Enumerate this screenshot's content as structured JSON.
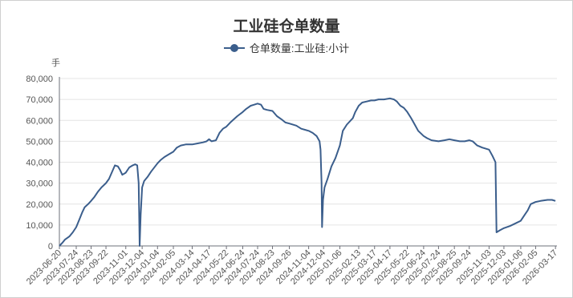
{
  "chart_data": {
    "type": "line",
    "title": "工业硅仓单数量",
    "ylabel": "手",
    "ylim": [
      0,
      80000
    ],
    "yticks": [
      0,
      10000,
      20000,
      30000,
      40000,
      50000,
      60000,
      70000,
      80000
    ],
    "ytick_labels": [
      "0",
      "10,000",
      "20,000",
      "30,000",
      "40,000",
      "50,000",
      "60,000",
      "70,000",
      "80,000"
    ],
    "xlim": [
      "2023-06-20",
      "2026-03-20"
    ],
    "xticks": [
      "2023-06-20",
      "2023-07-24",
      "2023-08-23",
      "2023-09-22",
      "2023-11-01",
      "2023-12-04",
      "2024-01-04",
      "2024-02-05",
      "2024-03-14",
      "2024-04-17",
      "2024-05-22",
      "2024-06-24",
      "2024-07-24",
      "2024-08-23",
      "2024-09-26",
      "2024-11-04",
      "2024-12-04",
      "2025-01-06",
      "2025-02-13",
      "2025-03-17",
      "2025-04-17",
      "2025-05-22",
      "2025-06-24",
      "2025-07-24",
      "2025-08-25",
      "2025-09-24",
      "2025-11-03",
      "2025-12-03",
      "2026-01-06",
      "2026-02-05",
      "2026-03-17"
    ],
    "grid": true,
    "legend_position": "top-center",
    "series": [
      {
        "name": "仓单数量:工业硅:小计",
        "color": "#3b5e8c",
        "points": [
          [
            "2023-06-20",
            0
          ],
          [
            "2023-06-26",
            1500
          ],
          [
            "2023-07-01",
            3000
          ],
          [
            "2023-07-10",
            4500
          ],
          [
            "2023-07-17",
            6500
          ],
          [
            "2023-07-24",
            9000
          ],
          [
            "2023-07-31",
            13000
          ],
          [
            "2023-08-05",
            16000
          ],
          [
            "2023-08-10",
            18500
          ],
          [
            "2023-08-17",
            20000
          ],
          [
            "2023-08-23",
            21500
          ],
          [
            "2023-08-30",
            23500
          ],
          [
            "2023-09-06",
            26000
          ],
          [
            "2023-09-13",
            28000
          ],
          [
            "2023-09-22",
            30000
          ],
          [
            "2023-09-28",
            32000
          ],
          [
            "2023-10-10",
            38500
          ],
          [
            "2023-10-16",
            38000
          ],
          [
            "2023-10-20",
            36500
          ],
          [
            "2023-10-25",
            34000
          ],
          [
            "2023-11-01",
            35000
          ],
          [
            "2023-11-08",
            37500
          ],
          [
            "2023-11-15",
            38500
          ],
          [
            "2023-11-20",
            39000
          ],
          [
            "2023-11-24",
            38500
          ],
          [
            "2023-11-27",
            30000
          ],
          [
            "2023-11-29",
            0
          ],
          [
            "2023-12-01",
            15000
          ],
          [
            "2023-12-04",
            28000
          ],
          [
            "2023-12-08",
            31000
          ],
          [
            "2023-12-15",
            33000
          ],
          [
            "2023-12-22",
            35500
          ],
          [
            "2024-01-04",
            39500
          ],
          [
            "2024-01-10",
            41000
          ],
          [
            "2024-01-18",
            42500
          ],
          [
            "2024-01-25",
            43500
          ],
          [
            "2024-02-05",
            45000
          ],
          [
            "2024-02-12",
            47000
          ],
          [
            "2024-02-20",
            48000
          ],
          [
            "2024-03-01",
            48500
          ],
          [
            "2024-03-14",
            48500
          ],
          [
            "2024-03-25",
            49000
          ],
          [
            "2024-04-05",
            49500
          ],
          [
            "2024-04-12",
            50000
          ],
          [
            "2024-04-17",
            51000
          ],
          [
            "2024-04-22",
            50000
          ],
          [
            "2024-05-01",
            50500
          ],
          [
            "2024-05-08",
            54000
          ],
          [
            "2024-05-15",
            56000
          ],
          [
            "2024-05-22",
            57000
          ],
          [
            "2024-05-30",
            59000
          ],
          [
            "2024-06-06",
            60500
          ],
          [
            "2024-06-13",
            62000
          ],
          [
            "2024-06-24",
            64000
          ],
          [
            "2024-07-01",
            65500
          ],
          [
            "2024-07-10",
            67000
          ],
          [
            "2024-07-17",
            67500
          ],
          [
            "2024-07-24",
            68000
          ],
          [
            "2024-07-31",
            67500
          ],
          [
            "2024-08-05",
            65500
          ],
          [
            "2024-08-12",
            65000
          ],
          [
            "2024-08-23",
            64500
          ],
          [
            "2024-09-01",
            62000
          ],
          [
            "2024-09-10",
            60500
          ],
          [
            "2024-09-18",
            59000
          ],
          [
            "2024-09-26",
            58500
          ],
          [
            "2024-10-10",
            57500
          ],
          [
            "2024-10-20",
            56000
          ],
          [
            "2024-11-04",
            55000
          ],
          [
            "2024-11-12",
            54000
          ],
          [
            "2024-11-20",
            52500
          ],
          [
            "2024-11-26",
            50000
          ],
          [
            "2024-11-28",
            46000
          ],
          [
            "2024-11-30",
            30000
          ],
          [
            "2024-12-01",
            9000
          ],
          [
            "2024-12-03",
            22000
          ],
          [
            "2024-12-06",
            28000
          ],
          [
            "2024-12-12",
            32000
          ],
          [
            "2024-12-20",
            38000
          ],
          [
            "2024-12-28",
            42000
          ],
          [
            "2025-01-06",
            48000
          ],
          [
            "2025-01-12",
            55000
          ],
          [
            "2025-01-20",
            58000
          ],
          [
            "2025-02-01",
            61000
          ],
          [
            "2025-02-06",
            64000
          ],
          [
            "2025-02-13",
            67000
          ],
          [
            "2025-02-20",
            68500
          ],
          [
            "2025-03-01",
            69000
          ],
          [
            "2025-03-10",
            69500
          ],
          [
            "2025-03-17",
            69500
          ],
          [
            "2025-03-25",
            70000
          ],
          [
            "2025-04-05",
            70000
          ],
          [
            "2025-04-17",
            70500
          ],
          [
            "2025-04-25",
            70000
          ],
          [
            "2025-05-01",
            69000
          ],
          [
            "2025-05-08",
            67000
          ],
          [
            "2025-05-15",
            66000
          ],
          [
            "2025-05-22",
            64000
          ],
          [
            "2025-05-30",
            61000
          ],
          [
            "2025-06-06",
            58000
          ],
          [
            "2025-06-13",
            55000
          ],
          [
            "2025-06-24",
            52500
          ],
          [
            "2025-07-01",
            51500
          ],
          [
            "2025-07-10",
            50500
          ],
          [
            "2025-07-24",
            50000
          ],
          [
            "2025-08-05",
            50500
          ],
          [
            "2025-08-15",
            51000
          ],
          [
            "2025-08-25",
            50500
          ],
          [
            "2025-09-05",
            50000
          ],
          [
            "2025-09-15",
            50000
          ],
          [
            "2025-09-24",
            50500
          ],
          [
            "2025-10-01",
            50000
          ],
          [
            "2025-10-10",
            48000
          ],
          [
            "2025-10-20",
            47000
          ],
          [
            "2025-11-03",
            46000
          ],
          [
            "2025-11-10",
            43000
          ],
          [
            "2025-11-16",
            40000
          ],
          [
            "2025-11-18",
            6500
          ],
          [
            "2025-11-25",
            7500
          ],
          [
            "2025-12-03",
            8500
          ],
          [
            "2025-12-15",
            9500
          ],
          [
            "2025-12-28",
            11000
          ],
          [
            "2026-01-06",
            12000
          ],
          [
            "2026-01-13",
            14500
          ],
          [
            "2026-01-20",
            17000
          ],
          [
            "2026-01-26",
            20000
          ],
          [
            "2026-02-05",
            21000
          ],
          [
            "2026-02-15",
            21500
          ],
          [
            "2026-03-01",
            22000
          ],
          [
            "2026-03-10",
            22000
          ],
          [
            "2026-03-17",
            21500
          ]
        ]
      }
    ]
  }
}
